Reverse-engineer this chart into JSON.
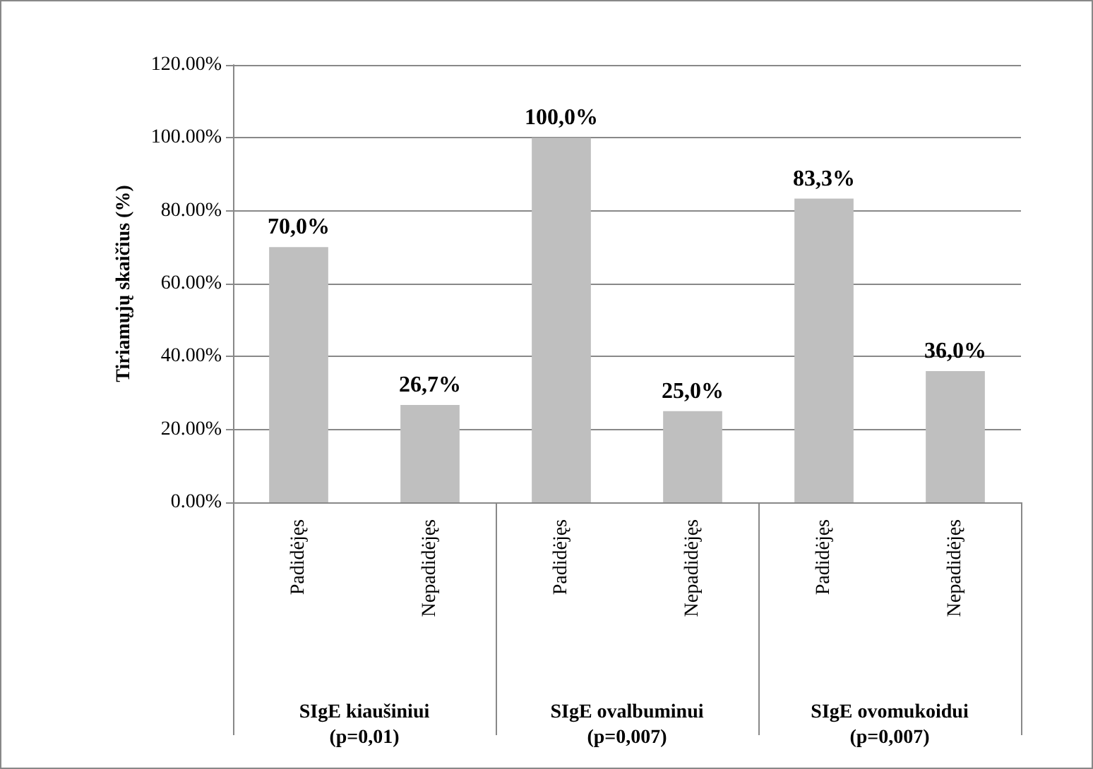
{
  "chart_data": {
    "type": "bar",
    "ylabel": "Tiriamųjų skaičius (%)",
    "categories": [
      "Padidėjęs",
      "Nepadidėjęs",
      "Padidėjęs",
      "Nepadidėjęs",
      "Padidėjęs",
      "Nepadidėjęs"
    ],
    "values": [
      70,
      26.7,
      100,
      25,
      83.3,
      36
    ],
    "value_labels": [
      "70,0%",
      "26,7%",
      "100,0%",
      "25,0%",
      "83,3%",
      "36,0%"
    ],
    "color": "#bfbfbf",
    "ylim": [
      0,
      120
    ],
    "yticks": [
      {
        "value": 0,
        "label": "0.00%"
      },
      {
        "value": 20,
        "label": "20.00%"
      },
      {
        "value": 40,
        "label": "40.00%"
      },
      {
        "value": 60,
        "label": "60.00%"
      },
      {
        "value": 80,
        "label": "80.00%"
      },
      {
        "value": 100,
        "label": "100.00%"
      },
      {
        "value": 120,
        "label": "120.00%"
      }
    ],
    "grid": "y",
    "annotations": [
      "SIgE kiaušiniui (p=0,01)",
      "SIgE ovalbuminui (p=0,007)",
      "SIgE ovomukoidui (p=0,007)"
    ]
  }
}
